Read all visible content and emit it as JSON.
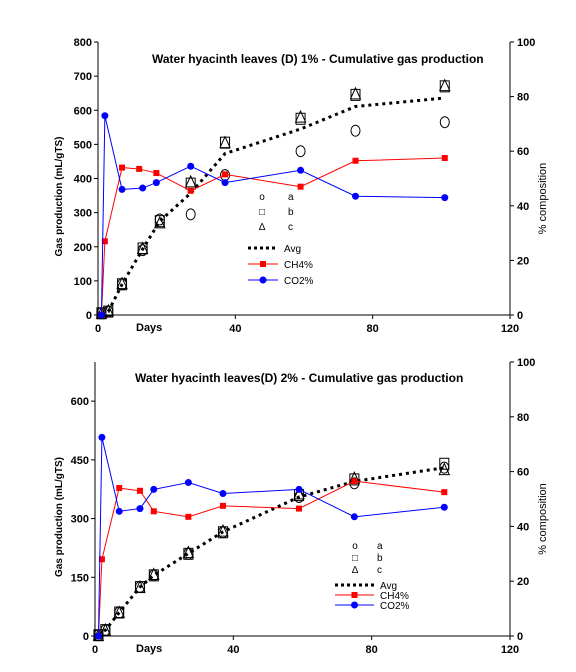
{
  "chart_data": [
    {
      "type": "line",
      "title": "Water hyacinth leaves (D) 1% - Cumulative gas production",
      "xlabel": "Days",
      "ylabel": "Gas production (mL/gTS)",
      "y2label": "% composition",
      "xlim": [
        0,
        120
      ],
      "ylim": [
        0,
        800
      ],
      "y2lim": [
        0,
        100
      ],
      "xticks": [
        "0",
        "40",
        "80",
        "120"
      ],
      "yticks": [
        "0",
        "100",
        "200",
        "300",
        "400",
        "500",
        "600",
        "700",
        "800"
      ],
      "y2ticks": [
        "0",
        "20",
        "40",
        "60",
        "80",
        "100"
      ],
      "series": [
        {
          "name": "a",
          "marker": "o",
          "x": [
            1,
            3,
            7,
            13,
            18,
            27,
            37,
            59,
            75,
            101
          ],
          "y": [
            5,
            10,
            90,
            190,
            280,
            295,
            410,
            480,
            540,
            565
          ]
        },
        {
          "name": "b",
          "marker": "□",
          "x": [
            1,
            3,
            7,
            13,
            18,
            27,
            37,
            59,
            75,
            101
          ],
          "y": [
            5,
            10,
            90,
            195,
            275,
            385,
            505,
            575,
            645,
            670
          ]
        },
        {
          "name": "c",
          "marker": "Δ",
          "x": [
            1,
            3,
            7,
            13,
            18,
            27,
            37,
            59,
            75,
            101
          ],
          "y": [
            5,
            12,
            92,
            195,
            270,
            390,
            505,
            580,
            648,
            672
          ]
        },
        {
          "name": "Avg",
          "axis": "left",
          "color": "#000000",
          "x": [
            1,
            3,
            7,
            13,
            18,
            27,
            37,
            59,
            75,
            101
          ],
          "y": [
            5,
            10,
            90,
            193,
            275,
            357,
            473,
            545,
            611,
            636
          ]
        },
        {
          "name": "CH4%",
          "axis": "right",
          "color": "#ff0000",
          "x": [
            1,
            2,
            7,
            12,
            17,
            27,
            37,
            59,
            75,
            101
          ],
          "y": [
            0,
            27,
            54,
            53.5,
            52,
            45.5,
            51.5,
            47,
            56.5,
            57.5
          ]
        },
        {
          "name": "CO2%",
          "axis": "right",
          "color": "#0000ff",
          "x": [
            1,
            2,
            7,
            13,
            17,
            27,
            37,
            59,
            75,
            101
          ],
          "y": [
            0,
            73,
            46,
            46.5,
            48.5,
            54.5,
            48.5,
            53,
            43.5,
            43
          ]
        }
      ]
    },
    {
      "type": "line",
      "title": "Water hyacinth leaves(D) 2% - Cumulative gas production",
      "xlabel": "Days",
      "ylabel": "Gas production (mL/gTS)",
      "y2label": "% composition",
      "xlim": [
        0,
        120
      ],
      "ylim": [
        0,
        700
      ],
      "y2lim": [
        0,
        100
      ],
      "xticks": [
        "0",
        "40",
        "80",
        "120"
      ],
      "yticks": [
        "0",
        "150",
        "300",
        "450",
        "600"
      ],
      "y2ticks": [
        "0",
        "20",
        "40",
        "60",
        "80",
        "100"
      ],
      "series": [
        {
          "name": "a",
          "marker": "o",
          "x": [
            1,
            3,
            7,
            13,
            17,
            27,
            37,
            59,
            75,
            101
          ],
          "y": [
            2,
            15,
            60,
            125,
            155,
            210,
            265,
            355,
            390,
            430
          ]
        },
        {
          "name": "b",
          "marker": "□",
          "x": [
            1,
            3,
            7,
            13,
            17,
            27,
            37,
            59,
            75,
            101
          ],
          "y": [
            2,
            15,
            60,
            125,
            155,
            210,
            265,
            360,
            400,
            440
          ]
        },
        {
          "name": "c",
          "marker": "Δ",
          "x": [
            1,
            3,
            7,
            13,
            17,
            27,
            37,
            59,
            75,
            101
          ],
          "y": [
            2,
            15,
            60,
            125,
            157,
            213,
            268,
            363,
            403,
            425
          ]
        },
        {
          "name": "Avg",
          "axis": "left",
          "color": "#000000",
          "x": [
            1,
            3,
            7,
            13,
            17,
            27,
            37,
            59,
            75,
            101
          ],
          "y": [
            2,
            15,
            60,
            125,
            155,
            211,
            266,
            355,
            395,
            430
          ]
        },
        {
          "name": "CH4%",
          "axis": "right",
          "color": "#ff0000",
          "x": [
            1,
            2,
            7,
            13,
            17,
            27,
            37,
            59,
            75,
            101
          ],
          "y": [
            0,
            28,
            54,
            53,
            45.5,
            43.5,
            47.5,
            46.5,
            56.5,
            52.5
          ]
        },
        {
          "name": "CO2%",
          "axis": "right",
          "color": "#0000ff",
          "x": [
            1,
            2,
            7,
            13,
            17,
            27,
            37,
            59,
            75,
            101
          ],
          "y": [
            0,
            72.5,
            45.5,
            46.5,
            53.5,
            56,
            52,
            53.5,
            43.5,
            47
          ]
        }
      ]
    }
  ]
}
